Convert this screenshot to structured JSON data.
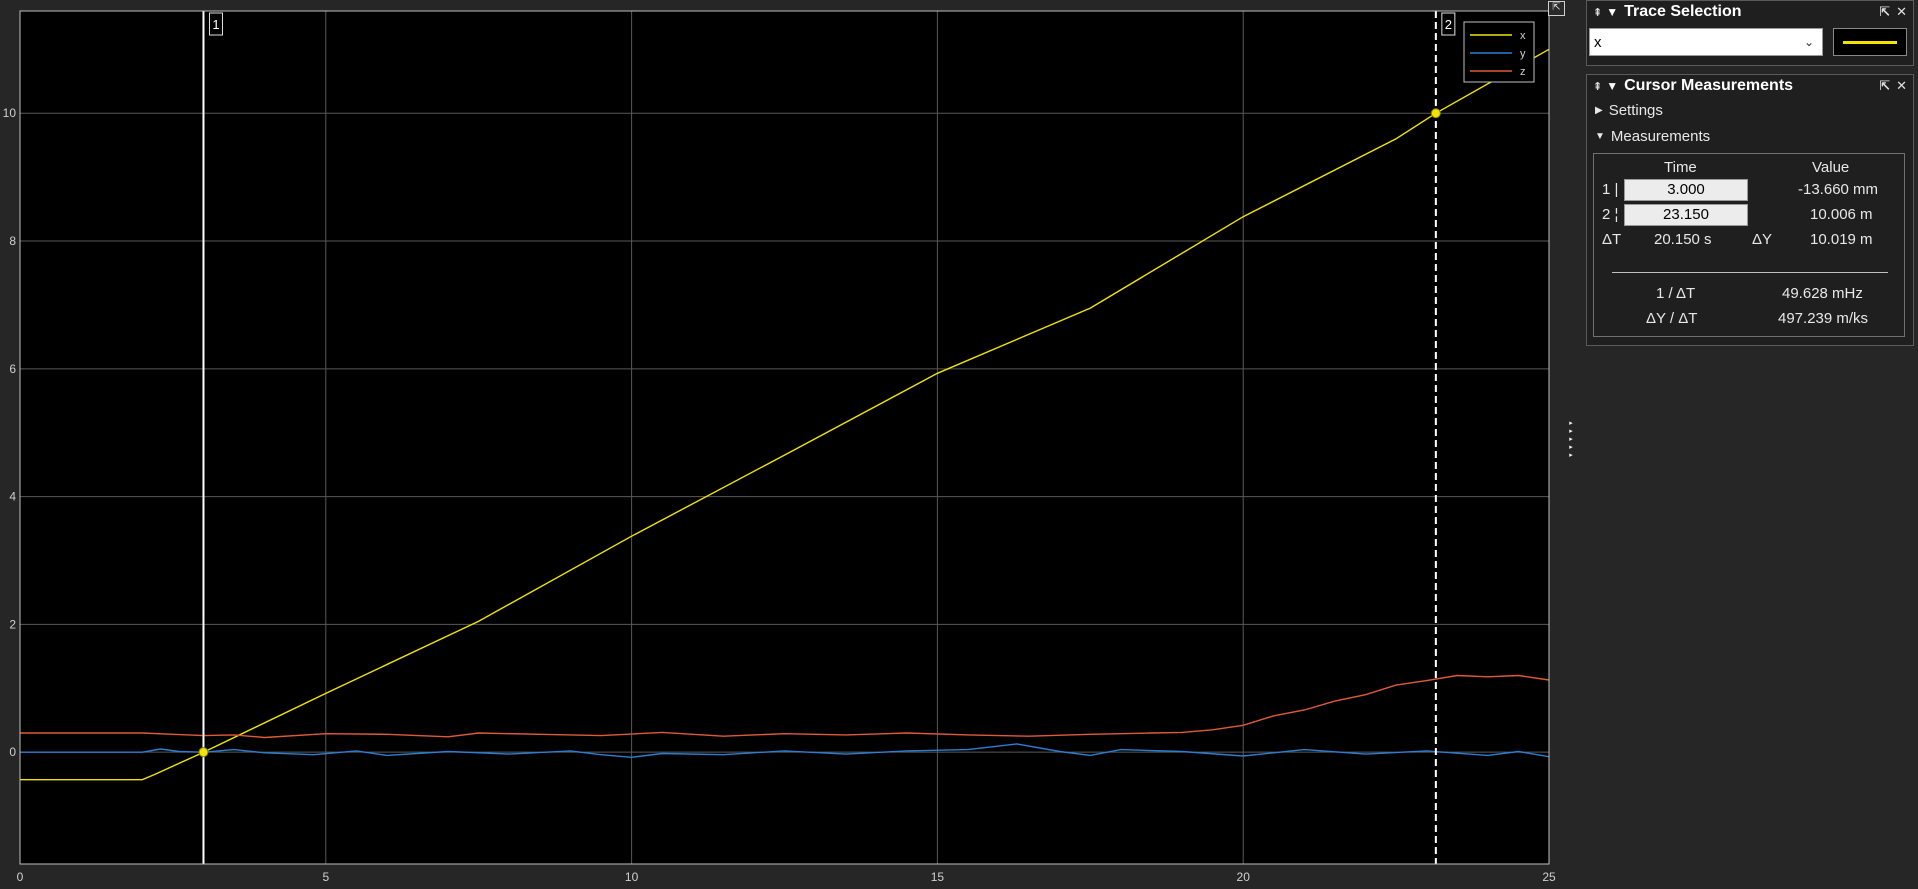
{
  "plot": {
    "background": "#000000",
    "grid_color": "#585858",
    "cursor_color": "#ffffff",
    "marker_color": "#f0e400",
    "undock_icon": "undock-icon",
    "collapse_icon": "collapse-arrows-icon"
  },
  "chart_data": {
    "type": "line",
    "xlim": [
      0,
      25
    ],
    "ylim": [
      -1.75,
      11.6
    ],
    "x_ticks": [
      "0",
      "5",
      "10",
      "15",
      "20",
      "25"
    ],
    "y_ticks": [
      "0",
      "2",
      "4",
      "6",
      "8",
      "10"
    ],
    "grid": true,
    "legend_position": "top-right",
    "series": [
      {
        "name": "x",
        "color": "#f0e400",
        "points": [
          [
            0,
            -0.43
          ],
          [
            2.0,
            -0.43
          ],
          [
            2.2,
            -0.35
          ],
          [
            3.0,
            0.0
          ],
          [
            5,
            0.92
          ],
          [
            7.5,
            2.05
          ],
          [
            10,
            3.38
          ],
          [
            12.5,
            4.65
          ],
          [
            15,
            5.93
          ],
          [
            17.5,
            6.95
          ],
          [
            20,
            8.38
          ],
          [
            22.5,
            9.6
          ],
          [
            23.15,
            10.0
          ],
          [
            25,
            11.0
          ]
        ]
      },
      {
        "name": "y",
        "color": "#2a7fd4",
        "points": [
          [
            0,
            0.0
          ],
          [
            2.0,
            0.0
          ],
          [
            2.3,
            0.05
          ],
          [
            2.6,
            0.01
          ],
          [
            3.0,
            0.0
          ],
          [
            3.5,
            0.04
          ],
          [
            4.0,
            -0.01
          ],
          [
            4.8,
            -0.04
          ],
          [
            5.5,
            0.02
          ],
          [
            6.0,
            -0.05
          ],
          [
            7.0,
            0.01
          ],
          [
            8.0,
            -0.03
          ],
          [
            9.0,
            0.02
          ],
          [
            9.5,
            -0.04
          ],
          [
            10.0,
            -0.08
          ],
          [
            10.5,
            -0.02
          ],
          [
            11.5,
            -0.04
          ],
          [
            12.5,
            0.02
          ],
          [
            13.5,
            -0.03
          ],
          [
            14.5,
            0.02
          ],
          [
            15.5,
            0.04
          ],
          [
            16.3,
            0.13
          ],
          [
            17.0,
            0.01
          ],
          [
            17.5,
            -0.05
          ],
          [
            18.0,
            0.04
          ],
          [
            19.0,
            0.01
          ],
          [
            20.0,
            -0.06
          ],
          [
            21.0,
            0.04
          ],
          [
            22.0,
            -0.03
          ],
          [
            23.0,
            0.02
          ],
          [
            24.0,
            -0.05
          ],
          [
            24.5,
            0.01
          ],
          [
            25,
            -0.07
          ]
        ]
      },
      {
        "name": "z",
        "color": "#e05a3a",
        "points": [
          [
            0,
            0.3
          ],
          [
            2.0,
            0.3
          ],
          [
            2.5,
            0.28
          ],
          [
            3.0,
            0.26
          ],
          [
            3.5,
            0.27
          ],
          [
            4.0,
            0.23
          ],
          [
            5,
            0.29
          ],
          [
            6,
            0.28
          ],
          [
            7,
            0.24
          ],
          [
            7.5,
            0.3
          ],
          [
            8.5,
            0.28
          ],
          [
            9.5,
            0.26
          ],
          [
            10.5,
            0.31
          ],
          [
            11.5,
            0.25
          ],
          [
            12.5,
            0.29
          ],
          [
            13.5,
            0.27
          ],
          [
            14.5,
            0.3
          ],
          [
            15.5,
            0.27
          ],
          [
            16.5,
            0.25
          ],
          [
            17.5,
            0.28
          ],
          [
            18.5,
            0.3
          ],
          [
            19.0,
            0.31
          ],
          [
            19.5,
            0.35
          ],
          [
            20.0,
            0.42
          ],
          [
            20.5,
            0.57
          ],
          [
            21.0,
            0.66
          ],
          [
            21.5,
            0.8
          ],
          [
            22.0,
            0.9
          ],
          [
            22.5,
            1.05
          ],
          [
            23.0,
            1.12
          ],
          [
            23.5,
            1.2
          ],
          [
            24.0,
            1.18
          ],
          [
            24.5,
            1.2
          ],
          [
            25,
            1.13
          ]
        ]
      }
    ],
    "cursors": [
      {
        "label": "1",
        "x": 3.0,
        "y": 0.0,
        "style": "solid"
      },
      {
        "label": "2",
        "x": 23.15,
        "y": 10.0,
        "style": "dashed"
      }
    ]
  },
  "trace_panel": {
    "title": "Trace Selection",
    "pin_icon": "pin-icon",
    "collapse_icon": "triangle-down-icon",
    "undock_icon": "undock-icon",
    "close_icon": "close-icon",
    "selected": "x",
    "swatch_color": "#f0e400"
  },
  "cursor_panel": {
    "title": "Cursor Measurements",
    "settings_label": "Settings",
    "measurements_label": "Measurements",
    "col_time": "Time",
    "col_value": "Value",
    "rows": [
      {
        "id": "1 |",
        "time": "3.000",
        "value": "-13.660 mm"
      },
      {
        "id": "2 ¦",
        "time": "23.150",
        "value": "10.006 m"
      }
    ],
    "dt_label": "ΔT",
    "dt_value": "20.150 s",
    "dy_label": "ΔY",
    "dy_value": "10.019 m",
    "inv_dt_label": "1 / ΔT",
    "inv_dt_value": "49.628 mHz",
    "slope_label": "ΔY / ΔT",
    "slope_value": "497.239 m/ks"
  }
}
